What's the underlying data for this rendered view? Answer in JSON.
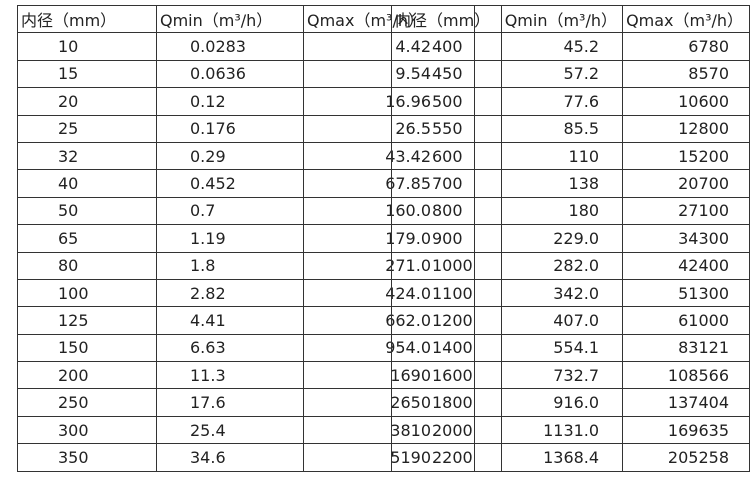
{
  "tables": [
    {
      "header": [
        "内径（mm）",
        "Qmin（m³/h）",
        "Qmax（m³/h）"
      ],
      "rows": [
        [
          "10",
          "0.0283",
          "4.42"
        ],
        [
          "15",
          "0.0636",
          "9.54"
        ],
        [
          "20",
          "0.12",
          "16.96"
        ],
        [
          "25",
          "0.176",
          "26.5"
        ],
        [
          "32",
          "0.29",
          "43.42"
        ],
        [
          "40",
          "0.452",
          "67.85"
        ],
        [
          "50",
          "0.7",
          "160.0"
        ],
        [
          "65",
          "1.19",
          "179.0"
        ],
        [
          "80",
          "1.8",
          "271.0"
        ],
        [
          "100",
          "2.82",
          "424.0"
        ],
        [
          "125",
          "4.41",
          "662.0"
        ],
        [
          "150",
          "6.63",
          "954.0"
        ],
        [
          "200",
          "11.3",
          "1690"
        ],
        [
          "250",
          "17.6",
          "2650"
        ],
        [
          "300",
          "25.4",
          "3810"
        ],
        [
          "350",
          "34.6",
          "5190"
        ]
      ]
    },
    {
      "header": [
        "内径（mm）",
        "Qmin（m³/h）",
        "Qmax（m³/h）"
      ],
      "rows": [
        [
          "400",
          "45.2",
          "6780"
        ],
        [
          "450",
          "57.2",
          "8570"
        ],
        [
          "500",
          "77.6",
          "10600"
        ],
        [
          "550",
          "85.5",
          "12800"
        ],
        [
          "600",
          "110",
          "15200"
        ],
        [
          "700",
          "138",
          "20700"
        ],
        [
          "800",
          "180",
          "27100"
        ],
        [
          "900",
          "229.0",
          "34300"
        ],
        [
          "1000",
          "282.0",
          "42400"
        ],
        [
          "1100",
          "342.0",
          "51300"
        ],
        [
          "1200",
          "407.0",
          "61000"
        ],
        [
          "1400",
          "554.1",
          "83121"
        ],
        [
          "1600",
          "732.7",
          "108566"
        ],
        [
          "1800",
          "916.0",
          "137404"
        ],
        [
          "2000",
          "1131.0",
          "169635"
        ],
        [
          "2200",
          "1368.4",
          "205258"
        ]
      ]
    }
  ]
}
